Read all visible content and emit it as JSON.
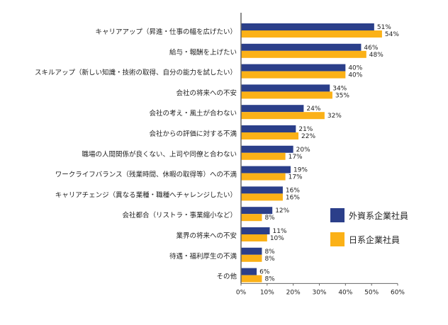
{
  "chart_data": {
    "type": "bar",
    "orientation": "horizontal",
    "categories": [
      "キャリアアップ（昇進・仕事の幅を広げたい）",
      "給与・報酬を上げたい",
      "スキルアップ（新しい知識・技術の取得、自分の能力を試したい）",
      "会社の将来への不安",
      "会社の考え・風土が合わない",
      "会社からの評価に対する不満",
      "職場の人間関係が良くない、上司や同僚と合わない",
      "ワークライフバランス（残業時間、休暇の取得等）への不満",
      "キャリアチェンジ（異なる業種・職種へチャレンジしたい）",
      "会社都合（リストラ・事業縮小など）",
      "業界の将来への不安",
      "待遇・福利厚生の不満",
      "その他"
    ],
    "series": [
      {
        "name": "外資系企業社員",
        "color": "#2b3f8a",
        "values": [
          51,
          46,
          40,
          34,
          24,
          21,
          20,
          19,
          16,
          12,
          11,
          8,
          6
        ]
      },
      {
        "name": "日系企業社員",
        "color": "#fbb117",
        "values": [
          54,
          48,
          40,
          35,
          32,
          22,
          17,
          17,
          16,
          8,
          10,
          8,
          8
        ]
      }
    ],
    "xlim": [
      0,
      60
    ],
    "xticks": [
      "0%",
      "10%",
      "20%",
      "30%",
      "40%",
      "50%",
      "60%"
    ],
    "value_suffix": "%",
    "grid": false,
    "legend": "right"
  }
}
